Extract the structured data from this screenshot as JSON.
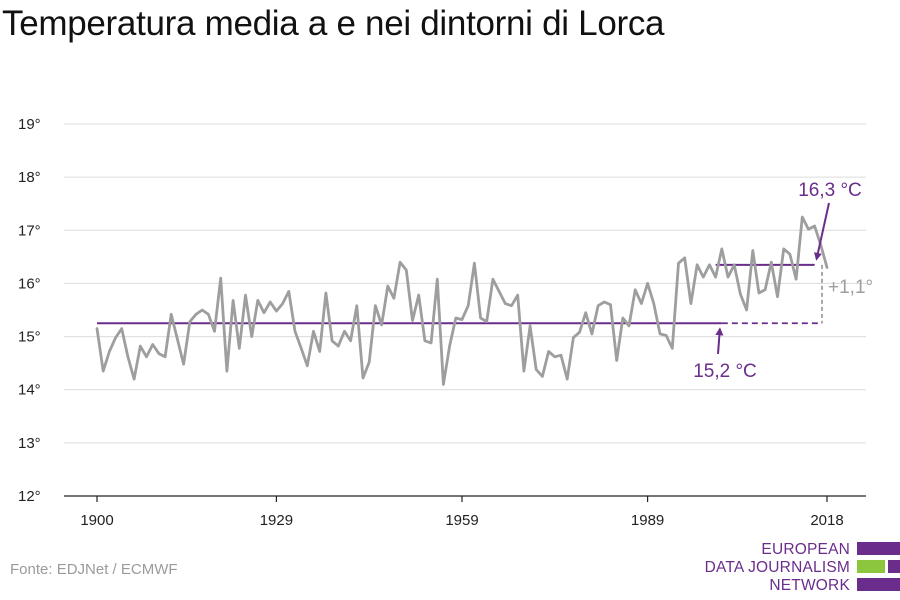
{
  "title": "Temperatura media a e nei dintorni di Lorca",
  "source": "Fonte: EDJNet / ECMWF",
  "logo": {
    "line1": "EUROPEAN",
    "line2": "DATA JOURNALISM",
    "line3": "NETWORK"
  },
  "colors": {
    "series": "#9e9e9e",
    "reference": "#6a2d8c",
    "brand_green": "#8cc63f",
    "grid": "#dcdcdc"
  },
  "chart_data": {
    "type": "line",
    "title": "Temperatura media a e nei dintorni di Lorca",
    "xlabel": "",
    "ylabel": "",
    "xlim": [
      1900,
      2018
    ],
    "ylim": [
      12,
      19
    ],
    "grid": true,
    "x_ticks": [
      1900,
      1929,
      1959,
      1989,
      2018
    ],
    "x_tick_labels": [
      "1900",
      "1929",
      "1959",
      "1989",
      "2018"
    ],
    "y_ticks": [
      12,
      13,
      14,
      15,
      16,
      17,
      18,
      19
    ],
    "y_tick_labels": [
      "12°",
      "13°",
      "14°",
      "15°",
      "16°",
      "17°",
      "18°",
      "19°"
    ],
    "series": [
      {
        "x_start": 1900,
        "x_end": 2018,
        "values": [
          15.15,
          14.35,
          14.72,
          14.98,
          15.15,
          14.62,
          14.2,
          14.82,
          14.62,
          14.85,
          14.68,
          14.62,
          15.42,
          14.95,
          14.48,
          15.28,
          15.42,
          15.5,
          15.42,
          15.1,
          16.1,
          14.35,
          15.68,
          14.78,
          15.78,
          15.0,
          15.68,
          15.45,
          15.65,
          15.48,
          15.62,
          15.85,
          15.1,
          14.78,
          14.45,
          15.1,
          14.72,
          15.82,
          14.92,
          14.82,
          15.1,
          14.92,
          15.58,
          14.22,
          14.52,
          15.58,
          15.22,
          15.95,
          15.72,
          16.4,
          16.25,
          15.3,
          15.78,
          14.92,
          14.88,
          16.08,
          14.1,
          14.82,
          15.35,
          15.32,
          15.58,
          16.38,
          15.35,
          15.28,
          16.08,
          15.85,
          15.62,
          15.58,
          15.78,
          14.35,
          15.2,
          14.38,
          14.25,
          14.72,
          14.62,
          14.65,
          14.2,
          14.98,
          15.08,
          15.45,
          15.05,
          15.58,
          15.65,
          15.6,
          14.55,
          15.35,
          15.2,
          15.88,
          15.62,
          16.0,
          15.62,
          15.05,
          15.02,
          14.78,
          16.38,
          16.48,
          15.62,
          16.35,
          16.12,
          16.35,
          16.12,
          16.65,
          16.12,
          16.35,
          15.8,
          15.5,
          16.62,
          15.82,
          15.88,
          16.4,
          15.75,
          16.65,
          16.55,
          16.08,
          17.25,
          17.02,
          17.08,
          16.72,
          16.3
        ]
      }
    ],
    "reference_lines": [
      {
        "label": "15,2 °C",
        "value": 15.25,
        "x_start": 1900,
        "x_end": 2018,
        "solid_until": 2001
      },
      {
        "label": "16,3 °C",
        "value": 16.35,
        "x_start": 2000,
        "x_end": 2016
      }
    ],
    "annotations": [
      {
        "text": "16,3 °C",
        "points_to": 2016,
        "value": 16.35
      },
      {
        "text": "15,2 °C",
        "points_to": 2001,
        "value": 15.25
      },
      {
        "text": "+1,1°",
        "at_x": 2018
      }
    ]
  }
}
